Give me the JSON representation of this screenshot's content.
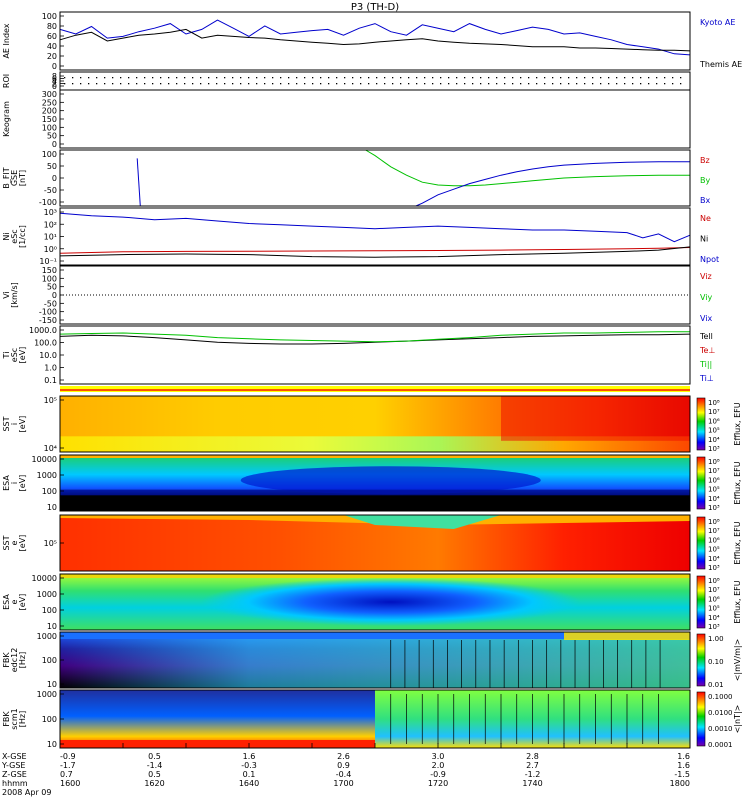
{
  "title": "P3 (TH-D)",
  "colors": {
    "red": "#cc0000",
    "green": "#00c000",
    "blue": "#0000cc",
    "black": "#000000",
    "orange": "#ff8c00",
    "yellow": "#ffff00",
    "cyan": "#00e5ff",
    "navy": "#000080"
  },
  "chart_data": [
    {
      "type": "line",
      "panel": "AE",
      "ylabel": "AE Index",
      "ylim": [
        0,
        100
      ],
      "yticks": [
        "100",
        "80",
        "60",
        "40",
        "20",
        "0"
      ],
      "x": [
        1600,
        1605,
        1610,
        1615,
        1620,
        1625,
        1630,
        1635,
        1640,
        1645,
        1650,
        1655,
        1660,
        1665,
        1670,
        1675,
        1680,
        1685,
        1690,
        1695,
        1700,
        1705,
        1710,
        1715,
        1720,
        1725,
        1730,
        1735,
        1740,
        1745,
        1750,
        1755,
        1760,
        1765,
        1770,
        1775,
        1780,
        1785,
        1790,
        1795,
        1800
      ],
      "series": [
        {
          "name": "Kyoto AE",
          "color": "blue",
          "values": [
            70,
            62,
            75,
            55,
            58,
            66,
            72,
            80,
            62,
            70,
            86,
            72,
            58,
            76,
            62,
            65,
            68,
            70,
            60,
            72,
            80,
            66,
            60,
            78,
            72,
            66,
            80,
            70,
            62,
            68,
            74,
            70,
            62,
            64,
            58,
            52,
            44,
            40,
            36,
            28,
            26
          ]
        },
        {
          "name": "Themis AE",
          "color": "black",
          "values": [
            52,
            60,
            65,
            50,
            55,
            60,
            62,
            65,
            70,
            55,
            60,
            58,
            56,
            55,
            52,
            50,
            48,
            46,
            44,
            45,
            48,
            50,
            52,
            54,
            50,
            48,
            46,
            45,
            44,
            42,
            40,
            40,
            40,
            38,
            38,
            37,
            36,
            35,
            34,
            34,
            33
          ]
        }
      ]
    },
    {
      "type": "line",
      "panel": "ROI",
      "ylabel": "ROI",
      "yticks": [
        "8",
        "6",
        "4",
        "2",
        "0"
      ]
    },
    {
      "type": "line",
      "panel": "Keogram",
      "ylabel": "Keogram",
      "ylim": [
        0,
        300
      ],
      "yticks": [
        "300",
        "250",
        "200",
        "150",
        "100",
        "50",
        "0"
      ]
    },
    {
      "type": "line",
      "panel": "BFIT",
      "ylabel": [
        "B_FIT",
        "GSE",
        "[nT]"
      ],
      "ylim": [
        -100,
        100
      ],
      "yticks": [
        "100",
        "50",
        "0",
        "-50",
        "-100"
      ],
      "series": [
        {
          "name": "Bz",
          "color": "red",
          "x": [],
          "values": []
        },
        {
          "name": "By",
          "color": "green",
          "x": [
            1697,
            1700,
            1705,
            1710,
            1715,
            1720,
            1725,
            1730,
            1735,
            1740,
            1745,
            1750,
            1755,
            1760,
            1770,
            1780,
            1790,
            1800
          ],
          "values": [
            100,
            80,
            40,
            10,
            -15,
            -25,
            -28,
            -28,
            -25,
            -20,
            -15,
            -10,
            -5,
            0,
            5,
            8,
            10,
            10
          ]
        },
        {
          "name": "Bx",
          "color": "blue",
          "x": [
            1713,
            1715,
            1720,
            1725,
            1730,
            1735,
            1740,
            1745,
            1750,
            1755,
            1760,
            1770,
            1780,
            1790,
            1800
          ],
          "values": [
            -100,
            -90,
            -60,
            -40,
            -20,
            -5,
            10,
            22,
            32,
            40,
            46,
            52,
            56,
            58,
            58
          ]
        },
        {
          "name": "Bx-spike",
          "color": "blue",
          "x": [
            1624.5,
            1625.5
          ],
          "values": [
            70,
            -100
          ]
        }
      ]
    },
    {
      "type": "line",
      "panel": "N",
      "yscale": "log",
      "ylabel": [
        "Ni",
        "eSc",
        "[1/cc]"
      ],
      "ylim": [
        -1,
        3.4
      ],
      "yticks": [
        "10³",
        "10²",
        "10¹",
        "10⁰",
        "10⁻¹"
      ],
      "series": [
        {
          "name": "Ne",
          "color": "red",
          "x": [
            1600,
            1620,
            1640,
            1660,
            1680,
            1700,
            1720,
            1740,
            1760,
            1780,
            1790,
            1800
          ],
          "values": [
            -0.1,
            0.02,
            0.05,
            0.06,
            0.08,
            0.1,
            0.12,
            0.15,
            0.2,
            0.25,
            0.3,
            0.35
          ]
        },
        {
          "name": "Ni",
          "color": "black",
          "x": [
            1600,
            1620,
            1640,
            1660,
            1680,
            1700,
            1720,
            1740,
            1760,
            1780,
            1790,
            1800
          ],
          "values": [
            -0.3,
            -0.2,
            -0.15,
            -0.2,
            -0.35,
            -0.4,
            -0.35,
            -0.2,
            -0.1,
            0.05,
            0.15,
            0.4
          ]
        },
        {
          "name": "Npot",
          "color": "blue",
          "x": [
            1600,
            1610,
            1620,
            1630,
            1640,
            1650,
            1660,
            1670,
            1680,
            1690,
            1700,
            1710,
            1720,
            1730,
            1740,
            1750,
            1760,
            1770,
            1780,
            1785,
            1790,
            1795,
            1800
          ],
          "values": [
            3.0,
            2.8,
            2.7,
            2.5,
            2.6,
            2.4,
            2.2,
            2.1,
            2.0,
            1.9,
            1.8,
            1.9,
            2.0,
            1.9,
            1.8,
            1.7,
            1.7,
            1.6,
            1.5,
            1.1,
            1.4,
            0.8,
            1.3
          ]
        }
      ]
    },
    {
      "type": "line",
      "panel": "V",
      "ylabel": [
        "Vi",
        "[km/s]"
      ],
      "ylim": [
        -175,
        175
      ],
      "yticks": [
        "150",
        "100",
        "50",
        "0",
        "-50",
        "-100",
        "-150"
      ],
      "series": [
        {
          "name": "Viz",
          "color": "red"
        },
        {
          "name": "Viy",
          "color": "green"
        },
        {
          "name": "Vix",
          "color": "blue"
        }
      ]
    },
    {
      "type": "line",
      "panel": "T",
      "yscale": "log",
      "ylabel": [
        "Ti",
        "eSc",
        "[eV]"
      ],
      "ylim": [
        -1.4,
        3.6
      ],
      "yticks": [
        "1000.0",
        "100.0",
        "10.0",
        "1.0",
        "0.1"
      ],
      "series": [
        {
          "name": "Tell",
          "color": "black",
          "x": [
            1600,
            1610,
            1620,
            1630,
            1640,
            1650,
            1660,
            1670,
            1680,
            1690,
            1700,
            1710,
            1720,
            1730,
            1740,
            1750,
            1760,
            1770,
            1780,
            1790,
            1800
          ],
          "values": [
            2.7,
            2.8,
            2.75,
            2.6,
            2.4,
            2.2,
            2.1,
            2.05,
            2.05,
            2.1,
            2.2,
            2.3,
            2.4,
            2.5,
            2.6,
            2.7,
            2.75,
            2.8,
            2.85,
            2.85,
            2.9
          ]
        },
        {
          "name": "Te⊥",
          "color": "red",
          "x": [],
          "values": []
        },
        {
          "name": "Ti||",
          "color": "green",
          "x": [
            1600,
            1610,
            1620,
            1630,
            1640,
            1650,
            1660,
            1670,
            1680,
            1690,
            1700,
            1710,
            1720,
            1730,
            1740,
            1750,
            1760,
            1770,
            1780,
            1790,
            1800
          ],
          "values": [
            2.9,
            2.95,
            3.0,
            2.9,
            2.8,
            2.6,
            2.5,
            2.4,
            2.35,
            2.3,
            2.25,
            2.3,
            2.45,
            2.6,
            2.8,
            2.9,
            3.0,
            3.0,
            3.05,
            3.1,
            3.1
          ]
        },
        {
          "name": "Ti⊥",
          "color": "blue",
          "x": [],
          "values": []
        }
      ]
    },
    {
      "type": "heatmap",
      "panel": "SST-i",
      "ylabel": [
        "SST",
        "i",
        "[eV]"
      ],
      "yticks": [
        "10⁵",
        "10⁴"
      ],
      "colorbar": {
        "label": "Efflux, EFU",
        "ticks": [
          "10⁸",
          "10⁷",
          "10⁶",
          "10⁵",
          "10⁴",
          "10³"
        ]
      }
    },
    {
      "type": "heatmap",
      "panel": "ESA-i",
      "ylabel": [
        "ESA",
        "i",
        "[eV]"
      ],
      "yticks": [
        "10000",
        "1000",
        "100",
        "10"
      ],
      "colorbar": {
        "label": "Efflux, EFU",
        "ticks": [
          "10⁸",
          "10⁷",
          "10⁶",
          "10⁵",
          "10⁴",
          "10³"
        ]
      }
    },
    {
      "type": "heatmap",
      "panel": "SST-e",
      "ylabel": [
        "SST",
        "e",
        "[eV]"
      ],
      "yticks": [
        "10⁵"
      ],
      "colorbar": {
        "label": "Efflux, EFU",
        "ticks": [
          "10⁸",
          "10⁷",
          "10⁶",
          "10⁵",
          "10⁴",
          "10³"
        ]
      }
    },
    {
      "type": "heatmap",
      "panel": "ESA-e",
      "ylabel": [
        "ESA",
        "e",
        "[eV]"
      ],
      "yticks": [
        "10000",
        "1000",
        "100",
        "10"
      ],
      "colorbar": {
        "label": "Efflux, EFU",
        "ticks": [
          "10⁸",
          "10⁷",
          "10⁶",
          "10⁵",
          "10⁴",
          "10³"
        ]
      }
    },
    {
      "type": "heatmap",
      "panel": "FBK-E",
      "ylabel": [
        "FBK",
        "edc12",
        "[Hz]"
      ],
      "yticks": [
        "1000",
        "100",
        "10"
      ],
      "colorbar": {
        "label": "<|mV/m|>",
        "ticks": [
          "1.00",
          "0.10",
          "0.01"
        ]
      }
    },
    {
      "type": "heatmap",
      "panel": "FBK-B",
      "ylabel": [
        "FBK",
        "scm1",
        "[Hz]"
      ],
      "yticks": [
        "1000",
        "100",
        "10"
      ],
      "colorbar": {
        "label": "<|nT|>",
        "ticks": [
          "0.1000",
          "0.0100",
          "0.0010",
          "0.0001"
        ]
      }
    }
  ],
  "xaxis": {
    "rows": [
      {
        "label": "X-GSE",
        "values": [
          "-0.9",
          "0.5",
          "1.6",
          "2.6",
          "3.0",
          "2.8",
          "1.6"
        ]
      },
      {
        "label": "Y-GSE",
        "values": [
          "-1.7",
          "-1.4",
          "-0.3",
          "0.9",
          "2.0",
          "2.7",
          "1.6"
        ]
      },
      {
        "label": "Z-GSE",
        "values": [
          "0.7",
          "0.5",
          "0.1",
          "-0.4",
          "-0.9",
          "-1.2",
          "-1.5"
        ]
      },
      {
        "label": "hhmm",
        "values": [
          "1600",
          "1620",
          "1640",
          "1700",
          "1720",
          "1740",
          "1800"
        ]
      }
    ],
    "date": "2008 Apr 09"
  }
}
